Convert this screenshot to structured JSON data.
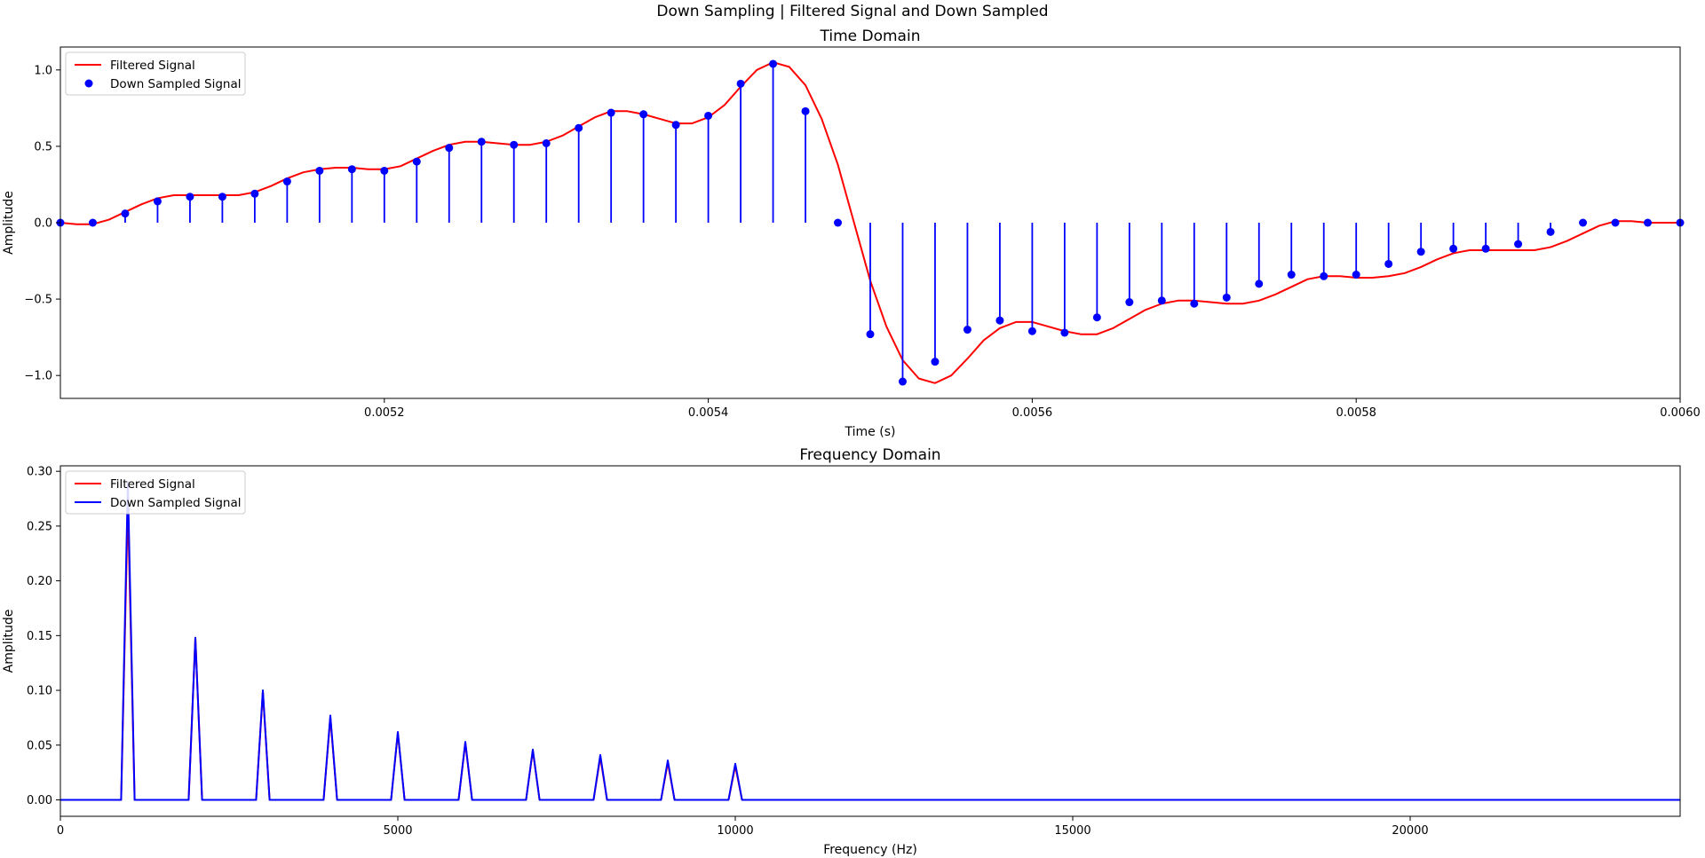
{
  "figure": {
    "suptitle": "Down Sampling | Filtered Signal and Down Sampled"
  },
  "chart_data": [
    {
      "type": "line",
      "subtype": "stem-overlay",
      "title": "Time Domain",
      "xlabel": "Time (s)",
      "ylabel": "Amplitude",
      "xlim": [
        0.005,
        0.006
      ],
      "ylim": [
        -1.15,
        1.15
      ],
      "xticks": [
        0.0052,
        0.0054,
        0.0056,
        0.0058,
        0.006
      ],
      "xtick_labels": [
        "0.0052",
        "0.0054",
        "0.0056",
        "0.0058",
        "0.0060"
      ],
      "yticks": [
        -1.0,
        -0.5,
        0.0,
        0.5,
        1.0
      ],
      "ytick_labels": [
        "−1.0",
        "−0.5",
        "0.0",
        "0.5",
        "1.0"
      ],
      "grid": false,
      "legend_position": "upper-left",
      "series": [
        {
          "name": "Filtered Signal",
          "style": "line",
          "color": "#ff0000",
          "x": [
            0.005,
            0.00501,
            0.00502,
            0.00503,
            0.00504,
            0.00505,
            0.00506,
            0.00507,
            0.00508,
            0.00509,
            0.0051,
            0.00511,
            0.00512,
            0.00513,
            0.00514,
            0.00515,
            0.00516,
            0.00517,
            0.00518,
            0.00519,
            0.0052,
            0.00521,
            0.00522,
            0.00523,
            0.00524,
            0.00525,
            0.00526,
            0.00527,
            0.00528,
            0.00529,
            0.0053,
            0.00531,
            0.00532,
            0.00533,
            0.00534,
            0.00535,
            0.00536,
            0.00537,
            0.00538,
            0.00539,
            0.0054,
            0.00541,
            0.00542,
            0.00543,
            0.00544,
            0.00545,
            0.00546,
            0.00547,
            0.00548,
            0.00549,
            0.0055,
            0.00551,
            0.00552,
            0.00553,
            0.00554,
            0.00555,
            0.00556,
            0.00557,
            0.00558,
            0.00559,
            0.0056,
            0.00561,
            0.00562,
            0.00563,
            0.00564,
            0.00565,
            0.00566,
            0.00567,
            0.00568,
            0.00569,
            0.0057,
            0.00571,
            0.00572,
            0.00573,
            0.00574,
            0.00575,
            0.00576,
            0.00577,
            0.00578,
            0.00579,
            0.0058,
            0.00581,
            0.00582,
            0.00583,
            0.00584,
            0.00585,
            0.00586,
            0.00587,
            0.00588,
            0.00589,
            0.0059,
            0.00591,
            0.00592,
            0.00593,
            0.00594,
            0.00595,
            0.00596,
            0.00597,
            0.00598,
            0.00599,
            0.006
          ],
          "y": [
            0.0,
            -0.01,
            -0.01,
            0.02,
            0.07,
            0.12,
            0.16,
            0.18,
            0.18,
            0.18,
            0.18,
            0.18,
            0.2,
            0.24,
            0.29,
            0.33,
            0.35,
            0.36,
            0.36,
            0.35,
            0.35,
            0.37,
            0.42,
            0.47,
            0.51,
            0.53,
            0.53,
            0.52,
            0.51,
            0.51,
            0.53,
            0.57,
            0.63,
            0.69,
            0.73,
            0.73,
            0.71,
            0.68,
            0.65,
            0.65,
            0.69,
            0.77,
            0.89,
            1.0,
            1.05,
            1.02,
            0.9,
            0.68,
            0.38,
            0.0,
            -0.38,
            -0.68,
            -0.9,
            -1.02,
            -1.05,
            -1.0,
            -0.89,
            -0.77,
            -0.69,
            -0.65,
            -0.65,
            -0.68,
            -0.71,
            -0.73,
            -0.73,
            -0.69,
            -0.63,
            -0.57,
            -0.53,
            -0.51,
            -0.51,
            -0.52,
            -0.53,
            -0.53,
            -0.51,
            -0.47,
            -0.42,
            -0.37,
            -0.35,
            -0.35,
            -0.36,
            -0.36,
            -0.35,
            -0.33,
            -0.29,
            -0.24,
            -0.2,
            -0.18,
            -0.18,
            -0.18,
            -0.18,
            -0.18,
            -0.16,
            -0.12,
            -0.07,
            -0.02,
            0.01,
            0.01,
            0.0,
            0.0,
            0.0
          ]
        },
        {
          "name": "Down Sampled Signal",
          "style": "stem",
          "color": "#0000ff",
          "x": [
            0.005,
            0.00502,
            0.00504,
            0.00506,
            0.00508,
            0.0051,
            0.00512,
            0.00514,
            0.00516,
            0.00518,
            0.0052,
            0.00522,
            0.00524,
            0.00526,
            0.00528,
            0.0053,
            0.00532,
            0.00534,
            0.00536,
            0.00538,
            0.0054,
            0.00542,
            0.00544,
            0.00546,
            0.00548,
            0.0055,
            0.00552,
            0.00554,
            0.00556,
            0.00558,
            0.0056,
            0.00562,
            0.00564,
            0.00566,
            0.00568,
            0.0057,
            0.00572,
            0.00574,
            0.00576,
            0.00578,
            0.0058,
            0.00582,
            0.00584,
            0.00586,
            0.00588,
            0.0059,
            0.00592,
            0.00594,
            0.00596,
            0.00598,
            0.006
          ],
          "y": [
            0.0,
            0.0,
            0.06,
            0.14,
            0.17,
            0.17,
            0.19,
            0.27,
            0.34,
            0.35,
            0.34,
            0.4,
            0.49,
            0.53,
            0.51,
            0.52,
            0.62,
            0.72,
            0.71,
            0.64,
            0.7,
            0.91,
            1.04,
            0.73,
            0.0,
            -0.73,
            -1.04,
            -0.91,
            -0.7,
            -0.64,
            -0.71,
            -0.72,
            -0.62,
            -0.52,
            -0.51,
            -0.53,
            -0.49,
            -0.4,
            -0.34,
            -0.35,
            -0.34,
            -0.27,
            -0.19,
            -0.17,
            -0.17,
            -0.14,
            -0.06,
            0.0,
            0.0,
            0.0,
            0.0
          ]
        }
      ]
    },
    {
      "type": "line",
      "title": "Frequency Domain",
      "xlabel": "Frequency (Hz)",
      "ylabel": "Amplitude",
      "xlim": [
        0,
        24000
      ],
      "ylim": [
        -0.015,
        0.305
      ],
      "xticks": [
        0,
        5000,
        10000,
        15000,
        20000
      ],
      "xtick_labels": [
        "0",
        "5000",
        "10000",
        "15000",
        "20000"
      ],
      "yticks": [
        0.0,
        0.05,
        0.1,
        0.15,
        0.2,
        0.25,
        0.3
      ],
      "ytick_labels": [
        "0.00",
        "0.05",
        "0.10",
        "0.15",
        "0.20",
        "0.25",
        "0.30"
      ],
      "grid": false,
      "legend_position": "upper-left",
      "series": [
        {
          "name": "Filtered Signal",
          "color": "#ff0000",
          "x": [
            0,
            900,
            1000,
            1100,
            1900,
            2000,
            2100,
            2900,
            3000,
            3100,
            3900,
            4000,
            4100,
            4900,
            5000,
            5100,
            5900,
            6000,
            6100,
            6900,
            7000,
            7100,
            7900,
            8000,
            8100,
            8900,
            9000,
            9100,
            9900,
            10000,
            10100,
            24000
          ],
          "y": [
            0.0,
            0.0,
            0.27,
            0.0,
            0.0,
            0.148,
            0.0,
            0.0,
            0.099,
            0.0,
            0.0,
            0.075,
            0.0,
            0.0,
            0.061,
            0.0,
            0.0,
            0.052,
            0.0,
            0.0,
            0.045,
            0.0,
            0.0,
            0.039,
            0.0,
            0.0,
            0.034,
            0.0,
            0.0,
            0.031,
            0.0,
            0.0
          ]
        },
        {
          "name": "Down Sampled Signal",
          "color": "#0000ff",
          "x": [
            0,
            900,
            1000,
            1100,
            1900,
            2000,
            2100,
            2900,
            3000,
            3100,
            3900,
            4000,
            4100,
            4900,
            5000,
            5100,
            5900,
            6000,
            6100,
            6900,
            7000,
            7100,
            7900,
            8000,
            8100,
            8900,
            9000,
            9100,
            9900,
            10000,
            10100,
            24000
          ],
          "y": [
            0.0,
            0.0,
            0.29,
            0.0,
            0.0,
            0.148,
            0.0,
            0.0,
            0.1,
            0.0,
            0.0,
            0.077,
            0.0,
            0.0,
            0.062,
            0.0,
            0.0,
            0.053,
            0.0,
            0.0,
            0.046,
            0.0,
            0.0,
            0.041,
            0.0,
            0.0,
            0.036,
            0.0,
            0.0,
            0.033,
            0.0,
            0.0
          ]
        }
      ]
    }
  ]
}
